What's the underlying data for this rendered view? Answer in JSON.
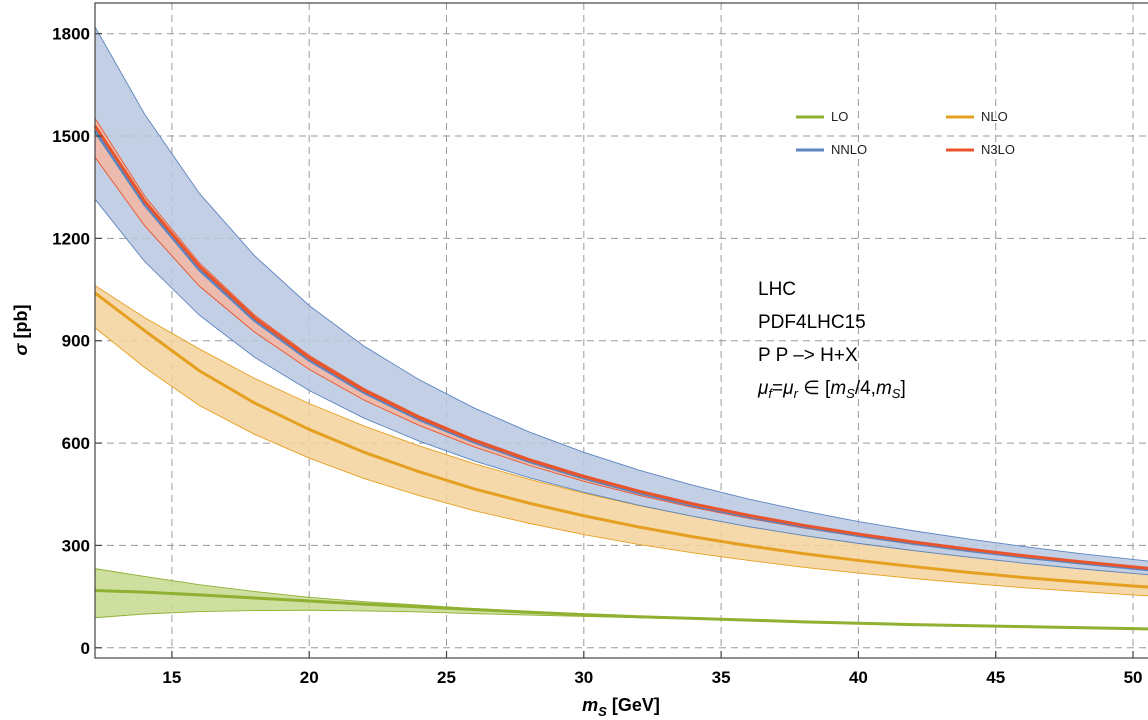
{
  "chart_data": {
    "type": "line",
    "xlabel_main": "m",
    "xlabel_sub": "S",
    "xlabel_unit": " [GeV]",
    "ylabel_main": "σ",
    "ylabel_unit": " [pb]",
    "xlim": [
      12.2,
      50.8
    ],
    "ylim": [
      -30,
      1890
    ],
    "x_ticks": [
      15,
      20,
      25,
      30,
      35,
      40,
      45,
      50
    ],
    "y_ticks": [
      0,
      300,
      600,
      900,
      1200,
      1500,
      1800
    ],
    "grid": true,
    "legend_position": "top-right",
    "x": [
      12.2,
      14,
      16,
      18,
      20,
      22,
      24,
      26,
      28,
      30,
      32,
      34,
      36,
      38,
      40,
      42,
      44,
      46,
      48,
      50,
      50.8
    ],
    "series": [
      {
        "name": "LO",
        "color": "#8fb031",
        "band_color": "#c5d98f",
        "central": [
          168,
          163,
          155,
          146,
          137,
          128,
          120,
          112,
          104,
          97,
          91,
          86,
          81,
          76,
          72,
          68,
          65,
          62,
          59,
          56,
          55
        ],
        "upper": [
          232,
          209,
          185,
          165,
          148,
          135,
          125,
          115,
          107,
          99,
          93,
          87,
          82,
          77,
          73,
          69,
          66,
          63,
          60,
          57,
          56
        ],
        "lower": [
          88,
          99,
          106,
          109,
          110,
          108,
          105,
          100,
          96,
          92,
          88,
          84,
          79,
          75,
          71,
          67,
          64,
          61,
          58,
          55,
          54
        ]
      },
      {
        "name": "NLO",
        "color": "#e5a022",
        "band_color": "#f4d29c",
        "central": [
          1040,
          930,
          812,
          718,
          640,
          573,
          516,
          466,
          424,
          387,
          354,
          325,
          299,
          276,
          256,
          238,
          221,
          206,
          193,
          181,
          177
        ],
        "upper": [
          1062,
          968,
          876,
          790,
          716,
          650,
          592,
          540,
          494,
          453,
          417,
          385,
          356,
          330,
          306,
          285,
          266,
          249,
          233,
          219,
          214
        ],
        "lower": [
          938,
          822,
          710,
          626,
          556,
          496,
          446,
          402,
          365,
          332,
          303,
          278,
          256,
          236,
          219,
          203,
          189,
          176,
          165,
          155,
          151
        ]
      },
      {
        "name": "NNLO",
        "color": "#5b86c2",
        "band_color": "#b7c7df",
        "central": [
          1515,
          1300,
          1108,
          960,
          843,
          748,
          669,
          603,
          546,
          497,
          454,
          417,
          384,
          355,
          329,
          306,
          285,
          266,
          249,
          233,
          227
        ],
        "upper": [
          1820,
          1565,
          1332,
          1150,
          1003,
          884,
          786,
          703,
          633,
          573,
          521,
          476,
          436,
          401,
          370,
          343,
          319,
          297,
          277,
          259,
          252
        ],
        "lower": [
          1315,
          1133,
          975,
          852,
          754,
          673,
          606,
          548,
          499,
          456,
          418,
          385,
          355,
          329,
          306,
          285,
          266,
          248,
          232,
          218,
          212
        ]
      },
      {
        "name": "N3LO",
        "color": "#e8542b",
        "band_color": "#f4b7a3",
        "central": [
          1530,
          1310,
          1118,
          968,
          850,
          754,
          675,
          608,
          551,
          502,
          459,
          421,
          388,
          359,
          333,
          310,
          289,
          270,
          253,
          237,
          231
        ],
        "upper": [
          1552,
          1325,
          1128,
          976,
          857,
          760,
          680,
          612,
          555,
          506,
          462,
          424,
          391,
          361,
          335,
          312,
          291,
          272,
          255,
          239,
          233
        ],
        "lower": [
          1438,
          1238,
          1060,
          926,
          816,
          726,
          652,
          589,
          535,
          488,
          447,
          411,
          379,
          351,
          326,
          303,
          283,
          264,
          248,
          232,
          226
        ]
      }
    ],
    "annotation": {
      "line1": "LHC",
      "line2": "PDF4LHC15",
      "line3": "P P –> H+X",
      "mu": "μ",
      "f": "f",
      "eq": "=",
      "r": "r",
      "in": " ∈ [",
      "m1": "m",
      "S1": "S",
      "div": "/4,",
      "m2": "m",
      "S2": "S",
      "close": "]"
    }
  }
}
